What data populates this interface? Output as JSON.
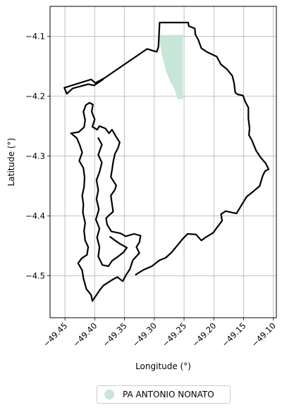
{
  "chart_data": {
    "type": "map",
    "xlabel": "Longitude (°)",
    "ylabel": "Latitude (°)",
    "xlim": [
      -49.475,
      -49.095
    ],
    "ylim": [
      -4.57,
      -4.05
    ],
    "xticks": [
      -49.45,
      -49.4,
      -49.35,
      -49.3,
      -49.25,
      -49.2,
      -49.15,
      -49.1
    ],
    "xtick_labels": [
      "−49.45",
      "−49.40",
      "−49.35",
      "−49.30",
      "−49.25",
      "−49.20",
      "−49.15",
      "−49.10"
    ],
    "yticks": [
      -4.1,
      -4.2,
      -4.3,
      -4.4,
      -4.5
    ],
    "ytick_labels": [
      "−4.1",
      "−4.2",
      "−4.3",
      "−4.4",
      "−4.5"
    ],
    "grid": true,
    "legend_position": "bottom-center",
    "legend_entries": [
      {
        "label": "PA ANTONIO NONATO",
        "color": "#c8e6d7"
      }
    ],
    "boundary_color": "#000000",
    "settlement_area": [
      [
        -49.291,
        -4.098
      ],
      [
        -49.252,
        -4.098
      ],
      [
        -49.252,
        -4.205
      ],
      [
        -49.261,
        -4.205
      ],
      [
        -49.266,
        -4.188
      ],
      [
        -49.274,
        -4.174
      ],
      [
        -49.281,
        -4.156
      ],
      [
        -49.287,
        -4.132
      ],
      [
        -49.291,
        -4.11
      ]
    ],
    "boundary_outline": [
      [
        -49.451,
        -4.186
      ],
      [
        -49.406,
        -4.172
      ],
      [
        -49.399,
        -4.178
      ],
      [
        -49.384,
        -4.17
      ],
      [
        -49.312,
        -4.121
      ],
      [
        -49.296,
        -4.126
      ],
      [
        -49.293,
        -4.118
      ],
      [
        -49.291,
        -4.077
      ],
      [
        -49.243,
        -4.077
      ],
      [
        -49.242,
        -4.083
      ],
      [
        -49.232,
        -4.087
      ],
      [
        -49.231,
        -4.097
      ],
      [
        -49.226,
        -4.106
      ],
      [
        -49.221,
        -4.12
      ],
      [
        -49.212,
        -4.126
      ],
      [
        -49.195,
        -4.134
      ],
      [
        -49.188,
        -4.147
      ],
      [
        -49.178,
        -4.155
      ],
      [
        -49.169,
        -4.166
      ],
      [
        -49.166,
        -4.178
      ],
      [
        -49.164,
        -4.194
      ],
      [
        -49.16,
        -4.197
      ],
      [
        -49.151,
        -4.199
      ],
      [
        -49.147,
        -4.21
      ],
      [
        -49.142,
        -4.219
      ],
      [
        -49.142,
        -4.237
      ],
      [
        -49.14,
        -4.254
      ],
      [
        -49.141,
        -4.265
      ],
      [
        -49.136,
        -4.274
      ],
      [
        -49.129,
        -4.291
      ],
      [
        -49.121,
        -4.303
      ],
      [
        -49.113,
        -4.312
      ],
      [
        -49.108,
        -4.322
      ],
      [
        -49.114,
        -4.325
      ],
      [
        -49.118,
        -4.333
      ],
      [
        -49.123,
        -4.35
      ],
      [
        -49.136,
        -4.361
      ],
      [
        -49.145,
        -4.368
      ],
      [
        -49.153,
        -4.381
      ],
      [
        -49.162,
        -4.396
      ],
      [
        -49.18,
        -4.392
      ],
      [
        -49.188,
        -4.397
      ],
      [
        -49.186,
        -4.408
      ],
      [
        -49.196,
        -4.421
      ],
      [
        -49.201,
        -4.428
      ],
      [
        -49.214,
        -4.436
      ],
      [
        -49.221,
        -4.441
      ],
      [
        -49.23,
        -4.431
      ],
      [
        -49.244,
        -4.43
      ],
      [
        -49.252,
        -4.438
      ],
      [
        -49.261,
        -4.449
      ],
      [
        -49.271,
        -4.461
      ],
      [
        -49.281,
        -4.47
      ],
      [
        -49.291,
        -4.474
      ],
      [
        -49.304,
        -4.484
      ],
      [
        -49.318,
        -4.49
      ],
      [
        -49.331,
        -4.498
      ]
    ],
    "west_outline": [
      [
        -49.409,
        -4.211
      ],
      [
        -49.403,
        -4.214
      ],
      [
        -49.405,
        -4.226
      ],
      [
        -49.4,
        -4.239
      ],
      [
        -49.404,
        -4.251
      ],
      [
        -49.396,
        -4.256
      ],
      [
        -49.392,
        -4.25
      ],
      [
        -49.382,
        -4.254
      ],
      [
        -49.376,
        -4.262
      ],
      [
        -49.371,
        -4.256
      ],
      [
        -49.364,
        -4.268
      ],
      [
        -49.358,
        -4.277
      ],
      [
        -49.361,
        -4.287
      ],
      [
        -49.366,
        -4.296
      ],
      [
        -49.369,
        -4.31
      ],
      [
        -49.371,
        -4.323
      ],
      [
        -49.373,
        -4.335
      ],
      [
        -49.364,
        -4.349
      ],
      [
        -49.366,
        -4.356
      ],
      [
        -49.373,
        -4.366
      ],
      [
        -49.371,
        -4.38
      ],
      [
        -49.369,
        -4.393
      ],
      [
        -49.376,
        -4.399
      ],
      [
        -49.381,
        -4.404
      ],
      [
        -49.379,
        -4.415
      ],
      [
        -49.372,
        -4.426
      ],
      [
        -49.357,
        -4.429
      ],
      [
        -49.348,
        -4.434
      ],
      [
        -49.334,
        -4.43
      ],
      [
        -49.323,
        -4.433
      ],
      [
        -49.325,
        -4.444
      ],
      [
        -49.33,
        -4.452
      ],
      [
        -49.325,
        -4.462
      ],
      [
        -49.336,
        -4.474
      ],
      [
        -49.341,
        -4.489
      ],
      [
        -49.347,
        -4.498
      ],
      [
        -49.353,
        -4.509
      ],
      [
        -49.362,
        -4.502
      ],
      [
        -49.371,
        -4.507
      ],
      [
        -49.385,
        -4.516
      ],
      [
        -49.391,
        -4.523
      ],
      [
        -49.397,
        -4.532
      ],
      [
        -49.404,
        -4.542
      ],
      [
        -49.406,
        -4.532
      ],
      [
        -49.414,
        -4.522
      ],
      [
        -49.419,
        -4.504
      ],
      [
        -49.421,
        -4.491
      ],
      [
        -49.428,
        -4.479
      ],
      [
        -49.422,
        -4.471
      ],
      [
        -49.413,
        -4.465
      ],
      [
        -49.411,
        -4.452
      ],
      [
        -49.416,
        -4.441
      ],
      [
        -49.418,
        -4.425
      ],
      [
        -49.416,
        -4.412
      ],
      [
        -49.42,
        -4.394
      ],
      [
        -49.419,
        -4.381
      ],
      [
        -49.421,
        -4.366
      ],
      [
        -49.418,
        -4.352
      ],
      [
        -49.417,
        -4.336
      ],
      [
        -49.419,
        -4.32
      ],
      [
        -49.426,
        -4.308
      ],
      [
        -49.421,
        -4.294
      ],
      [
        -49.425,
        -4.282
      ],
      [
        -49.43,
        -4.27
      ],
      [
        -49.44,
        -4.262
      ],
      [
        -49.427,
        -4.26
      ],
      [
        -49.418,
        -4.252
      ],
      [
        -49.416,
        -4.24
      ],
      [
        -49.419,
        -4.226
      ],
      [
        -49.415,
        -4.215
      ],
      [
        -49.409,
        -4.211
      ]
    ],
    "inner_outline": [
      [
        -49.394,
        -4.27
      ],
      [
        -49.388,
        -4.281
      ],
      [
        -49.394,
        -4.298
      ],
      [
        -49.388,
        -4.311
      ],
      [
        -49.392,
        -4.327
      ],
      [
        -49.397,
        -4.34
      ],
      [
        -49.394,
        -4.357
      ],
      [
        -49.397,
        -4.372
      ],
      [
        -49.393,
        -4.389
      ],
      [
        -49.398,
        -4.406
      ],
      [
        -49.392,
        -4.421
      ],
      [
        -49.396,
        -4.436
      ],
      [
        -49.392,
        -4.452
      ],
      [
        -49.394,
        -4.468
      ],
      [
        -49.387,
        -4.482
      ],
      [
        -49.377,
        -4.484
      ],
      [
        -49.371,
        -4.475
      ],
      [
        -49.361,
        -4.468
      ],
      [
        -49.352,
        -4.461
      ],
      [
        -49.346,
        -4.453
      ],
      [
        -49.357,
        -4.447
      ],
      [
        -49.366,
        -4.441
      ],
      [
        -49.374,
        -4.435
      ]
    ],
    "north_link": [
      [
        -49.451,
        -4.186
      ],
      [
        -49.447,
        -4.196
      ],
      [
        -49.437,
        -4.187
      ],
      [
        -49.426,
        -4.184
      ],
      [
        -49.411,
        -4.18
      ],
      [
        -49.401,
        -4.182
      ],
      [
        -49.386,
        -4.172
      ]
    ]
  }
}
